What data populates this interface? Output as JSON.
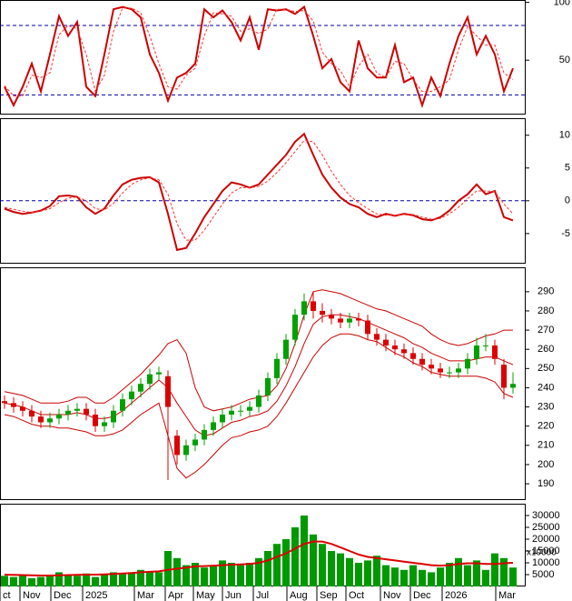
{
  "x_axis": {
    "xlim": [
      -0.5,
      57.3
    ],
    "xticks": [
      {
        "value": -0.5,
        "label": "ct"
      },
      {
        "value": 1.7,
        "label": "Nov"
      },
      {
        "value": 5.1,
        "label": "Dec"
      },
      {
        "value": 8.6,
        "label": "2025"
      },
      {
        "value": 14.3,
        "label": "Mar"
      },
      {
        "value": 17.7,
        "label": "Apr"
      },
      {
        "value": 20.8,
        "label": "May"
      },
      {
        "value": 24,
        "label": "Jun"
      },
      {
        "value": 27.4,
        "label": "Jul"
      },
      {
        "value": 31.1,
        "label": "Aug"
      },
      {
        "value": 34.4,
        "label": "Sep"
      },
      {
        "value": 37.6,
        "label": "Oct"
      },
      {
        "value": 41.4,
        "label": "Nov"
      },
      {
        "value": 44.7,
        "label": "Dec"
      },
      {
        "value": 48.2,
        "label": "2026"
      },
      {
        "value": 54.1,
        "label": "Mar"
      }
    ]
  },
  "chart_data": [
    {
      "type": "line",
      "ylim": [
        3,
        102
      ],
      "yticks": [
        50,
        100
      ],
      "levels": [
        20,
        80
      ],
      "level_color": "#0000aa",
      "series": [
        {
          "color": "#cc0000",
          "values": [
            27,
            11,
            27,
            47,
            23,
            55,
            88,
            71,
            83,
            27,
            19,
            55,
            94,
            96,
            94,
            87,
            55,
            39,
            15,
            35,
            39,
            47,
            94,
            87,
            93,
            83,
            67,
            87,
            59,
            94,
            93,
            94,
            90,
            96,
            71,
            43,
            51,
            31,
            23,
            67,
            43,
            35,
            35,
            63,
            31,
            35,
            11,
            35,
            19,
            47,
            71,
            87,
            55,
            71,
            55,
            23,
            43
          ]
        },
        {
          "color": "#ff3333",
          "dashed": true,
          "values": [
            28,
            19,
            19,
            37,
            35,
            39,
            72,
            80,
            77,
            55,
            23,
            37,
            75,
            95,
            95,
            91,
            71,
            47,
            27,
            25,
            37,
            43,
            71,
            91,
            90,
            88,
            75,
            77,
            73,
            77,
            94,
            94,
            92,
            93,
            84,
            57,
            47,
            41,
            27,
            45,
            55,
            39,
            35,
            49,
            47,
            33,
            23,
            23,
            27,
            33,
            59,
            79,
            71,
            63,
            63,
            39,
            33
          ]
        }
      ]
    },
    {
      "type": "line",
      "ylim": [
        -9.6,
        12.6
      ],
      "yticks": [
        -5,
        0,
        5,
        10
      ],
      "levels": [
        0
      ],
      "level_color": "#0000aa",
      "series": [
        {
          "color": "#cc0000",
          "values": [
            -1.2,
            -1.7,
            -2,
            -1.8,
            -1.5,
            -0.8,
            0.7,
            0.8,
            0.6,
            -1,
            -2,
            -1.2,
            0.8,
            2.5,
            3.2,
            3.5,
            3.6,
            2.8,
            -2,
            -7.5,
            -7.2,
            -5,
            -2.5,
            -0.5,
            1.5,
            2.8,
            2.5,
            2,
            2.5,
            4,
            5.5,
            7,
            9,
            10.2,
            7,
            4,
            2,
            0.5,
            -0.5,
            -1,
            -2,
            -2.5,
            -2,
            -2.3,
            -2,
            -2.2,
            -2.8,
            -3,
            -2.5,
            -1.5,
            0,
            1,
            2.5,
            1,
            1.5,
            -2.5,
            -3
          ]
        },
        {
          "color": "#ff3333",
          "dashed": true,
          "values": [
            -1,
            -1.3,
            -1.6,
            -1.8,
            -1.6,
            -1.2,
            -0.3,
            0.4,
            0.6,
            0,
            -1.2,
            -1.4,
            -0.4,
            1.2,
            2.5,
            3.2,
            3.5,
            3.2,
            1,
            -3.5,
            -6,
            -6,
            -4.5,
            -2.5,
            -0.5,
            1.2,
            2,
            2,
            2.2,
            3,
            4.3,
            5.8,
            7.5,
            9.2,
            9,
            7,
            4.5,
            2.5,
            0.8,
            -0.3,
            -1.2,
            -2,
            -2.2,
            -2.2,
            -2.1,
            -2.1,
            -2.5,
            -2.8,
            -2.7,
            -2,
            -1,
            0.3,
            1.5,
            1.5,
            1.4,
            -0.5,
            -2
          ]
        }
      ]
    },
    {
      "type": "candlestick",
      "ylim": [
        181.5,
        302.7
      ],
      "yticks": [
        190,
        200,
        210,
        220,
        230,
        240,
        250,
        260,
        270,
        280,
        290
      ],
      "up_color": "#00a000",
      "down_color": "#dd0000",
      "open": [
        233,
        232,
        230,
        228,
        225,
        222,
        224,
        226,
        228,
        229,
        226,
        220,
        222,
        228,
        234,
        238,
        242,
        247,
        246,
        215,
        205,
        210,
        213,
        218,
        222,
        226,
        228,
        228,
        230,
        236,
        245,
        255,
        265,
        278,
        285,
        280,
        278,
        276,
        274,
        276,
        275,
        268,
        265,
        262,
        260,
        258,
        255,
        252,
        250,
        248,
        248,
        250,
        255,
        262,
        262,
        252,
        240
      ],
      "high": [
        236,
        235,
        233,
        231,
        228,
        227,
        229,
        231,
        232,
        232,
        229,
        225,
        231,
        237,
        241,
        245,
        250,
        251,
        249,
        218,
        213,
        216,
        221,
        225,
        229,
        231,
        231,
        233,
        239,
        248,
        258,
        268,
        281,
        289,
        290,
        284,
        281,
        279,
        279,
        279,
        278,
        271,
        268,
        265,
        263,
        261,
        258,
        255,
        253,
        251,
        253,
        258,
        266,
        268,
        265,
        255,
        248
      ],
      "low": [
        229,
        227,
        225,
        222,
        219,
        219,
        221,
        223,
        225,
        223,
        217,
        217,
        219,
        225,
        231,
        235,
        239,
        244,
        192,
        200,
        202,
        207,
        210,
        215,
        219,
        223,
        225,
        225,
        227,
        233,
        242,
        252,
        262,
        275,
        276,
        274,
        273,
        271,
        271,
        272,
        265,
        262,
        259,
        257,
        255,
        252,
        249,
        247,
        245,
        245,
        245,
        247,
        252,
        259,
        252,
        234,
        237
      ],
      "close": [
        232,
        230,
        228,
        225,
        222,
        224,
        226,
        228,
        229,
        226,
        220,
        222,
        228,
        234,
        238,
        242,
        247,
        248,
        230,
        205,
        210,
        213,
        218,
        222,
        226,
        228,
        228,
        230,
        236,
        245,
        255,
        265,
        278,
        285,
        280,
        278,
        276,
        274,
        276,
        275,
        268,
        265,
        262,
        260,
        258,
        255,
        252,
        250,
        248,
        248,
        250,
        255,
        262,
        262,
        255,
        240,
        242
      ],
      "series": [
        {
          "color": "#cc0000",
          "values": [
            238,
            237,
            236,
            234,
            232,
            232,
            232,
            233,
            235,
            235,
            232,
            232,
            235,
            239,
            243,
            247,
            252,
            257,
            263,
            265,
            258,
            240,
            230,
            228,
            229,
            230,
            232,
            234,
            235,
            236,
            241,
            250,
            263,
            278,
            290,
            291,
            290,
            289,
            287,
            285,
            283,
            281,
            280,
            278,
            276,
            274,
            272,
            268,
            265,
            263,
            262,
            263,
            265,
            267,
            268,
            270,
            270
          ]
        },
        {
          "color": "#cc0000",
          "values": [
            232,
            231,
            230,
            228,
            226,
            226,
            226,
            226,
            227,
            226,
            224,
            224,
            225,
            228,
            232,
            236,
            240,
            244,
            240,
            232,
            225,
            218,
            215,
            216,
            219,
            222,
            223,
            225,
            226,
            228,
            233,
            241,
            251,
            263,
            273,
            277,
            278,
            278,
            277,
            276,
            274,
            272,
            270,
            268,
            266,
            263,
            261,
            258,
            256,
            254,
            254,
            254,
            255,
            256,
            256,
            254,
            252
          ]
        },
        {
          "color": "#cc0000",
          "values": [
            226,
            225,
            223,
            221,
            220,
            220,
            219,
            219,
            218,
            217,
            215,
            215,
            216,
            218,
            222,
            226,
            229,
            232,
            215,
            198,
            193,
            196,
            200,
            205,
            210,
            214,
            215,
            217,
            218,
            220,
            225,
            232,
            240,
            248,
            256,
            262,
            266,
            268,
            268,
            267,
            265,
            264,
            261,
            258,
            256,
            253,
            251,
            248,
            247,
            246,
            246,
            246,
            246,
            245,
            243,
            237,
            235
          ]
        }
      ]
    },
    {
      "type": "bar",
      "ylim": [
        0,
        35000
      ],
      "yticks": [
        5000,
        10000,
        15000,
        20000,
        25000,
        30000
      ],
      "annotation": "x10000",
      "color": "#009900",
      "values": [
        4500,
        4000,
        5000,
        3500,
        4000,
        4500,
        6000,
        5000,
        4500,
        5500,
        4000,
        5000,
        6000,
        5500,
        6000,
        7000,
        6500,
        6000,
        15000,
        12000,
        9000,
        10000,
        8000,
        9000,
        11000,
        10000,
        9000,
        10000,
        12000,
        15000,
        18000,
        20000,
        25000,
        30000,
        22000,
        18000,
        15000,
        14000,
        12000,
        10000,
        11000,
        13000,
        9000,
        8000,
        7000,
        9000,
        7000,
        6000,
        8000,
        10000,
        12000,
        9000,
        11000,
        7000,
        14000,
        12000,
        8000
      ],
      "series": [
        {
          "color": "#dd0000",
          "values": [
            5000,
            4900,
            4800,
            4700,
            4600,
            4600,
            4700,
            4800,
            4900,
            5000,
            5000,
            5100,
            5300,
            5500,
            5700,
            6000,
            6200,
            6400,
            7000,
            7500,
            8000,
            8500,
            8600,
            8800,
            9000,
            9200,
            9300,
            9500,
            10000,
            11000,
            12500,
            14000,
            16000,
            18000,
            19000,
            19000,
            18000,
            16500,
            15000,
            13500,
            12500,
            12000,
            11500,
            11000,
            10500,
            10000,
            9500,
            9000,
            8800,
            9000,
            9500,
            9800,
            9800,
            9500,
            9500,
            9800,
            10000
          ]
        }
      ]
    }
  ]
}
